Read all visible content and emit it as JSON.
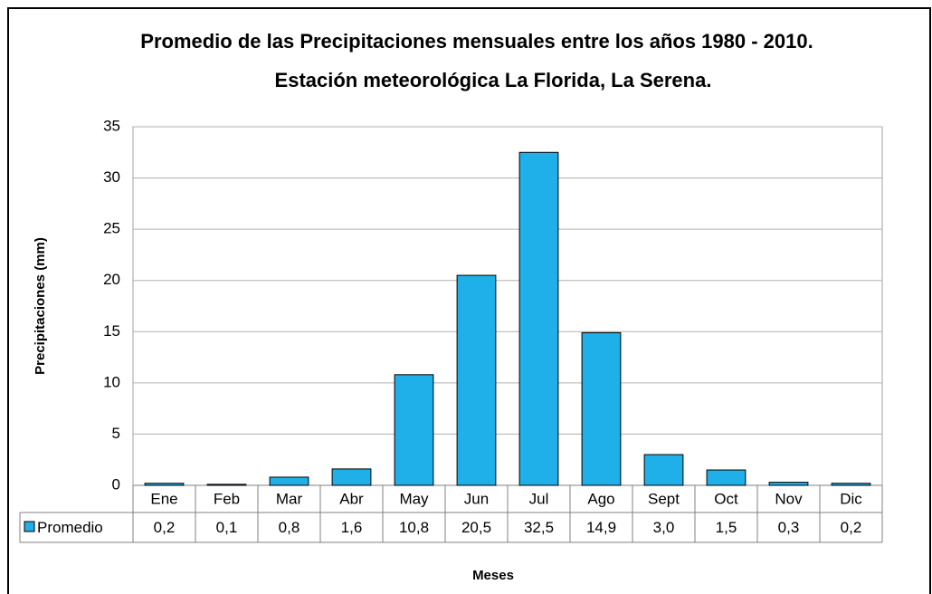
{
  "chart_data": {
    "type": "bar",
    "title": "Promedio de las Precipitaciones mensuales entre los años 1980 - 2010.",
    "subtitle": "Estación meteorológica La Florida, La Serena.",
    "y_label": "Precipitaciones  (mm)",
    "x_label": "Meses",
    "categories": [
      "Ene",
      "Feb",
      "Mar",
      "Abr",
      "May",
      "Jun",
      "Jul",
      "Ago",
      "Sept",
      "Oct",
      "Nov",
      "Dic"
    ],
    "series": [
      {
        "name": "Promedio",
        "color": "#1fb0ea",
        "values": [
          0.2,
          0.1,
          0.8,
          1.6,
          10.8,
          20.5,
          32.5,
          14.9,
          3.0,
          1.5,
          0.3,
          0.2
        ],
        "value_labels": [
          "0,2",
          "0,1",
          "0,8",
          "1,6",
          "10,8",
          "20,5",
          "32,5",
          "14,9",
          "3,0",
          "1,5",
          "0,3",
          "0,2"
        ]
      }
    ],
    "ylim": [
      0,
      35
    ],
    "yticks": [
      0,
      5,
      10,
      15,
      20,
      25,
      30,
      35
    ],
    "grid": true
  }
}
